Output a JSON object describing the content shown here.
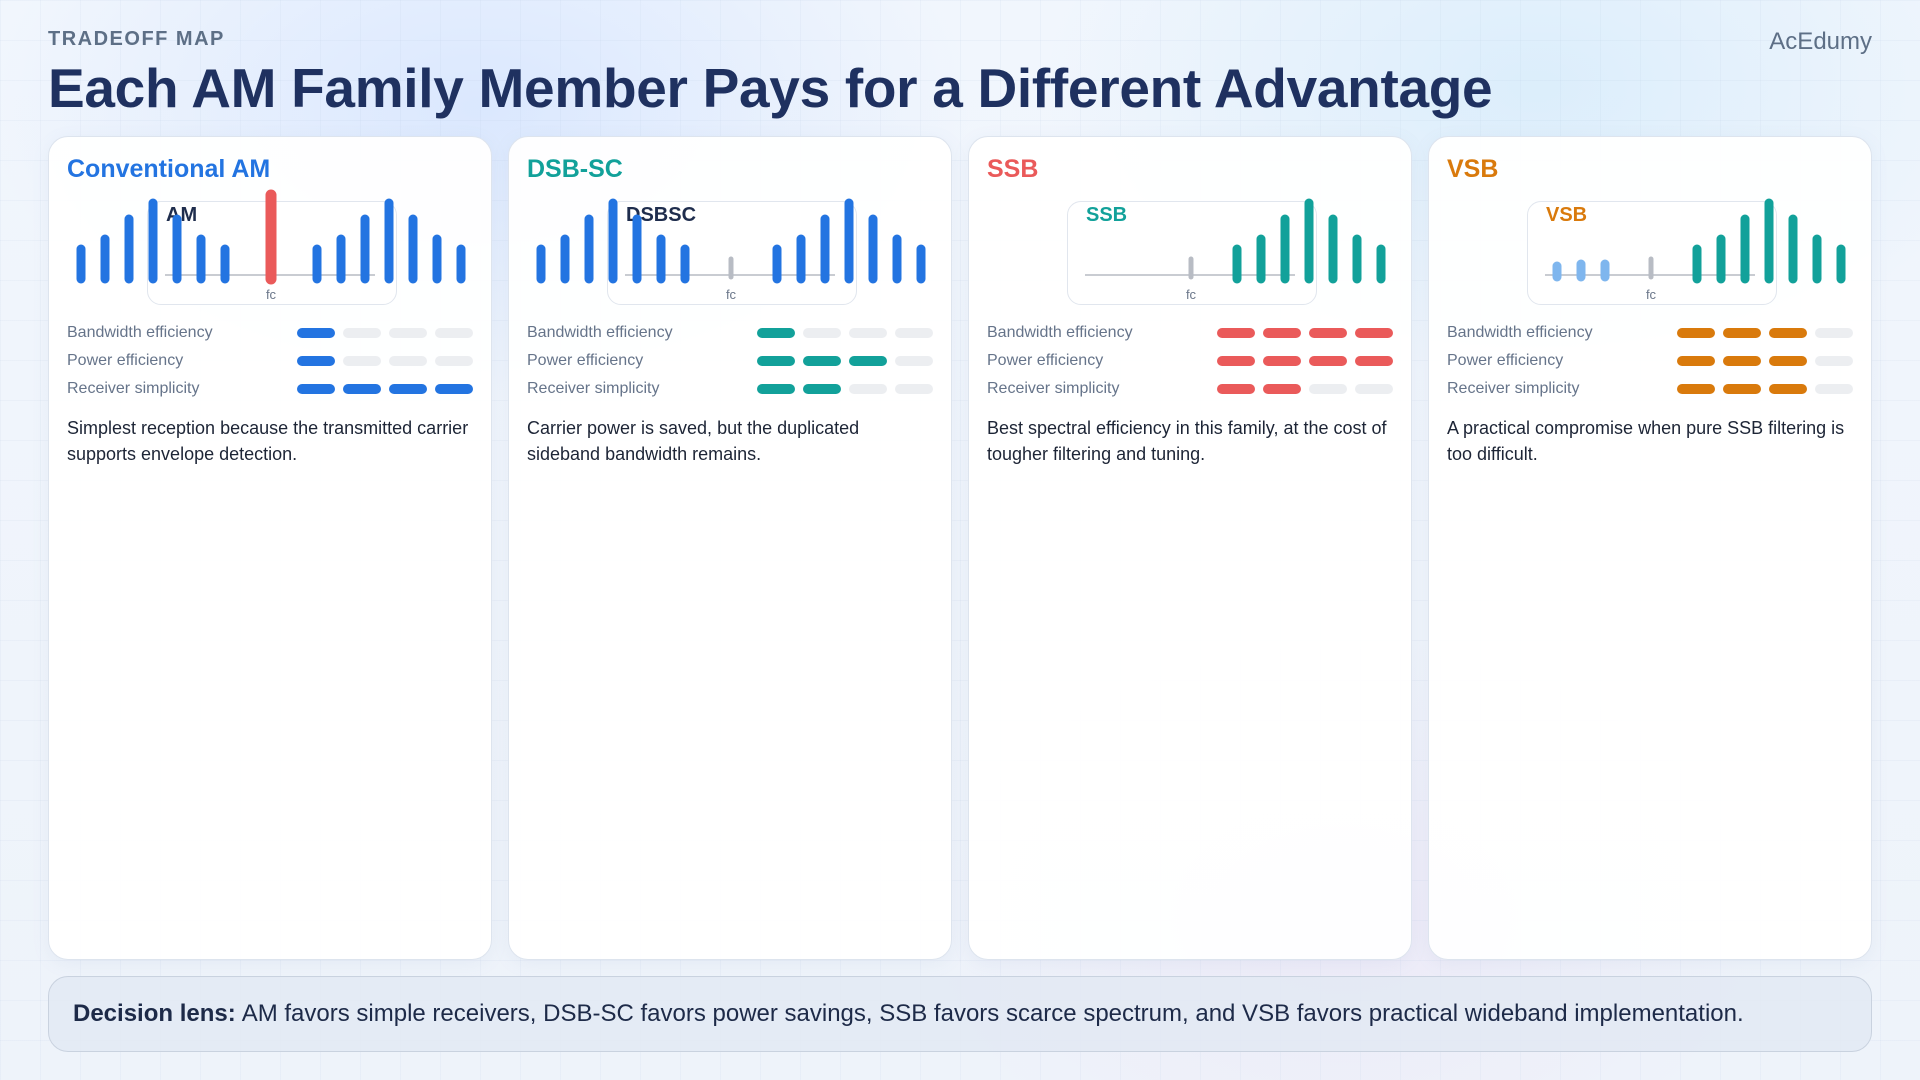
{
  "header": {
    "eyebrow": "TRADEOFF MAP",
    "title": "Each AM Family Member Pays for a Different Advantage",
    "brand": "AcEdumy"
  },
  "metric_labels": [
    "Bandwidth efficiency",
    "Power efficiency",
    "Receiver simplicity"
  ],
  "cards": [
    {
      "title": "Conventional AM",
      "color": "#2374e1",
      "spectrum_label": "AM",
      "spectrum_label_color": "#1f2d4d",
      "axis_label": "fc",
      "ratings": [
        1,
        1,
        4
      ],
      "description": "Simplest reception because the transmitted carrier supports envelope detection."
    },
    {
      "title": "DSB-SC",
      "color": "#12a19a",
      "spectrum_label": "DSBSC",
      "spectrum_label_color": "#1f2d4d",
      "axis_label": "fc",
      "ratings": [
        1,
        3,
        2
      ],
      "description": "Carrier power is saved, but the duplicated sideband bandwidth remains."
    },
    {
      "title": "SSB",
      "color": "#ea5a5a",
      "spectrum_label": "SSB",
      "spectrum_label_color": "#12a19a",
      "axis_label": "fc",
      "ratings": [
        4,
        4,
        2
      ],
      "description": "Best spectral efficiency in this family, at the cost of tougher filtering and tuning."
    },
    {
      "title": "VSB",
      "color": "#d97a0c",
      "spectrum_label": "VSB",
      "spectrum_label_color": "#d97a0c",
      "axis_label": "fc",
      "ratings": [
        3,
        3,
        3
      ],
      "description": "A practical compromise when pure SSB filtering is too difficult."
    }
  ],
  "decision": {
    "label": "Decision lens:",
    "text": "AM favors simple receivers, DSB-SC favors power savings, SSB favors scarce spectrum, and VSB favors practical wideband implementation."
  }
}
